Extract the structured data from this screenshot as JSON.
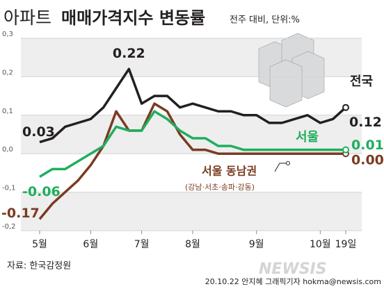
{
  "chart_data": {
    "type": "line",
    "title_prefix": "아파트",
    "title": "매매가격지수 변동률",
    "subtitle": "전주 대비, 단위:%",
    "categories": [
      "5월",
      null,
      null,
      null,
      "6월",
      null,
      null,
      null,
      "7월",
      null,
      null,
      null,
      "8월",
      null,
      null,
      null,
      null,
      "9월",
      null,
      null,
      null,
      null,
      "10월",
      null,
      "19일"
    ],
    "series": [
      {
        "name": "전국",
        "color": "#231f20",
        "values": [
          0.03,
          0.04,
          0.07,
          0.08,
          0.09,
          0.12,
          0.17,
          0.22,
          0.13,
          0.15,
          0.15,
          0.12,
          0.13,
          0.12,
          0.11,
          0.11,
          0.1,
          0.1,
          0.08,
          0.08,
          0.09,
          0.1,
          0.08,
          0.09,
          0.12
        ],
        "value_labels": [
          "0.03",
          null,
          null,
          null,
          null,
          null,
          null,
          "0.22",
          null,
          null,
          null,
          null,
          null,
          null,
          null,
          null,
          null,
          null,
          null,
          null,
          null,
          null,
          null,
          null,
          "0.12"
        ]
      },
      {
        "name": "서울",
        "color": "#1fae5e",
        "values": [
          -0.06,
          -0.04,
          -0.04,
          -0.02,
          0.0,
          0.02,
          0.07,
          0.06,
          0.06,
          0.11,
          0.09,
          0.06,
          0.04,
          0.04,
          0.02,
          0.02,
          0.01,
          0.01,
          0.01,
          0.01,
          0.01,
          0.01,
          0.01,
          0.01,
          0.01
        ],
        "value_labels": [
          "-0.06",
          null,
          null,
          null,
          null,
          null,
          null,
          null,
          null,
          null,
          null,
          null,
          null,
          null,
          null,
          null,
          null,
          null,
          null,
          null,
          null,
          null,
          null,
          null,
          "0.01"
        ]
      },
      {
        "name": "서울 동남권",
        "note": "(강남·서초·송파·강동)",
        "color": "#7a3b22",
        "values": [
          -0.17,
          -0.13,
          -0.1,
          -0.07,
          -0.03,
          0.02,
          0.11,
          0.06,
          0.06,
          0.13,
          0.11,
          0.05,
          0.01,
          0.01,
          0.0,
          0.0,
          0.0,
          0.0,
          0.0,
          0.0,
          0.0,
          0.0,
          0.0,
          0.0,
          0.0
        ],
        "value_labels": [
          "-0.17",
          null,
          null,
          null,
          null,
          null,
          null,
          null,
          null,
          null,
          null,
          null,
          null,
          null,
          null,
          null,
          null,
          null,
          null,
          null,
          null,
          null,
          null,
          null,
          "0.00"
        ]
      }
    ],
    "ylim": [
      -0.2,
      0.3
    ],
    "yticks": [
      {
        "value": 0.3,
        "label": "0,3"
      },
      {
        "value": 0.2,
        "label": "0,2"
      },
      {
        "value": 0.1,
        "label": "0,1"
      },
      {
        "value": 0.0,
        "label": "0,0"
      },
      {
        "value": -0.1,
        "label": "-0,1"
      },
      {
        "value": -0.2,
        "label": "-0,2"
      }
    ],
    "source": "자료: 한국감정원",
    "credit": "20.10.22 안지혜 그래픽기자 hokma@newsis.com",
    "watermark": "NEWSIS"
  }
}
